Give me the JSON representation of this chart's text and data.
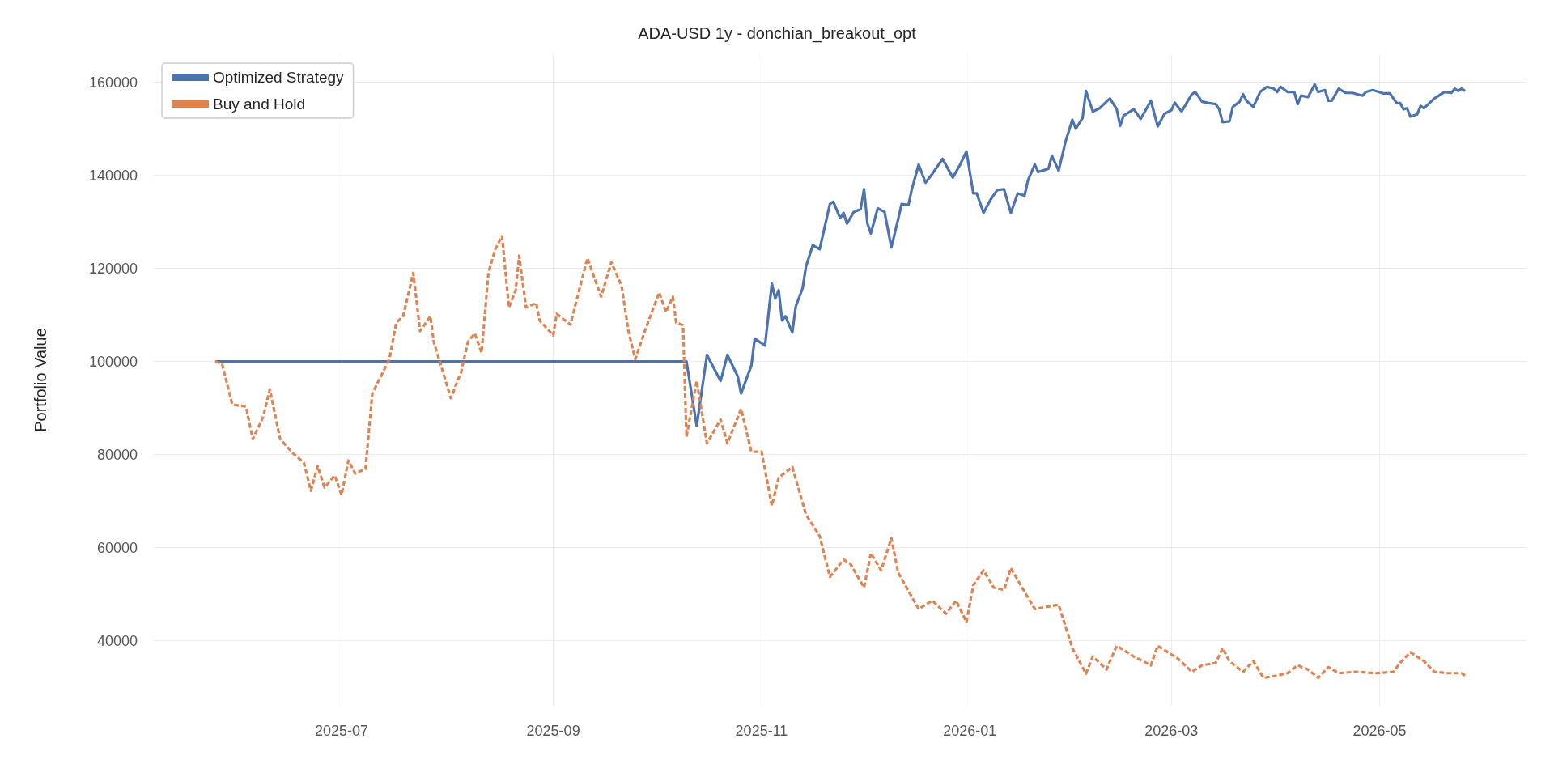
{
  "chart_data": {
    "type": "line",
    "title": "ADA-USD 1y - donchian_breakout_opt",
    "ylabel": "Portfolio Value",
    "xlim": [
      "2025-05-07",
      "2026-06-13"
    ],
    "xticks": [
      "2025-07",
      "2025-09",
      "2025-11",
      "2026-01",
      "2026-03",
      "2026-05"
    ],
    "ylim": [
      26000,
      166000
    ],
    "yticks": [
      40000,
      60000,
      80000,
      100000,
      120000,
      140000,
      160000
    ],
    "grid": true,
    "legend": "top left",
    "marker": "none",
    "series": [
      {
        "name": "Optimized Strategy",
        "color": "#4c72b0",
        "line_style": "solid",
        "x": [
          "2025-05-25",
          "2025-10-09",
          "2025-10-10",
          "2025-10-13",
          "2025-10-16",
          "2025-10-20",
          "2025-10-22",
          "2025-10-25",
          "2025-10-26",
          "2025-10-29",
          "2025-10-30",
          "2025-11-02",
          "2025-11-04",
          "2025-11-05",
          "2025-11-06",
          "2025-11-07",
          "2025-11-08",
          "2025-11-10",
          "2025-11-11",
          "2025-11-13",
          "2025-11-14",
          "2025-11-16",
          "2025-11-18",
          "2025-11-21",
          "2025-11-22",
          "2025-11-24",
          "2025-11-25",
          "2025-11-26",
          "2025-11-28",
          "2025-11-30",
          "2025-12-01",
          "2025-12-02",
          "2025-12-03",
          "2025-12-05",
          "2025-12-07",
          "2025-12-09",
          "2025-12-11",
          "2025-12-12",
          "2025-12-14",
          "2025-12-15",
          "2025-12-17",
          "2025-12-19",
          "2025-12-21",
          "2025-12-24",
          "2025-12-27",
          "2025-12-29",
          "2025-12-31",
          "2026-01-02",
          "2026-01-03",
          "2026-01-05",
          "2026-01-07",
          "2026-01-09",
          "2026-01-11",
          "2026-01-13",
          "2026-01-15",
          "2026-01-17",
          "2026-01-18",
          "2026-01-20",
          "2026-01-21",
          "2026-01-24",
          "2026-01-25",
          "2026-01-27",
          "2026-01-29",
          "2026-01-31",
          "2026-02-01",
          "2026-02-03",
          "2026-02-04",
          "2026-02-06",
          "2026-02-08",
          "2026-02-11",
          "2026-02-13",
          "2026-02-14",
          "2026-02-15",
          "2026-02-18",
          "2026-02-20",
          "2026-02-23",
          "2026-02-25",
          "2026-02-27",
          "2026-03-01",
          "2026-03-02",
          "2026-03-04",
          "2026-03-06",
          "2026-03-07",
          "2026-03-08",
          "2026-03-10",
          "2026-03-12",
          "2026-03-14",
          "2026-03-15",
          "2026-03-16",
          "2026-03-18",
          "2026-03-19",
          "2026-03-21",
          "2026-03-22",
          "2026-03-23",
          "2026-03-25",
          "2026-03-27",
          "2026-03-29",
          "2026-03-31",
          "2026-04-01",
          "2026-04-02",
          "2026-04-04",
          "2026-04-06",
          "2026-04-07",
          "2026-04-08",
          "2026-04-10",
          "2026-04-12",
          "2026-04-13",
          "2026-04-15",
          "2026-04-16",
          "2026-04-17",
          "2026-04-19",
          "2026-04-21",
          "2026-04-23",
          "2026-04-26",
          "2026-04-27",
          "2026-04-29",
          "2026-05-02",
          "2026-05-04",
          "2026-05-06",
          "2026-05-07",
          "2026-05-08",
          "2026-05-09",
          "2026-05-10",
          "2026-05-12",
          "2026-05-13",
          "2026-05-14",
          "2026-05-17",
          "2026-05-19",
          "2026-05-20",
          "2026-05-22",
          "2026-05-23",
          "2026-05-24",
          "2026-05-25",
          "2026-05-26"
        ],
        "values": [
          100000,
          100000,
          100000,
          86100,
          101400,
          95800,
          101400,
          96800,
          93100,
          99100,
          104900,
          103400,
          116700,
          113500,
          115300,
          108800,
          109700,
          106200,
          111800,
          115700,
          120400,
          125000,
          124100,
          133800,
          134300,
          130800,
          131900,
          129600,
          132100,
          132700,
          137000,
          129600,
          127500,
          132900,
          132100,
          124500,
          130600,
          133800,
          133600,
          137000,
          142300,
          138400,
          140300,
          143500,
          139500,
          142100,
          145100,
          136100,
          136100,
          131900,
          134700,
          136800,
          137000,
          131900,
          136100,
          135600,
          138900,
          142300,
          140700,
          141400,
          144200,
          141000,
          147200,
          151900,
          150000,
          152300,
          158100,
          153700,
          154400,
          156500,
          154200,
          150600,
          152800,
          154200,
          152100,
          156000,
          150500,
          153200,
          154000,
          155600,
          153700,
          156200,
          157400,
          157900,
          155800,
          155500,
          155300,
          154200,
          151400,
          151600,
          154700,
          155800,
          157400,
          156000,
          154700,
          157900,
          159000,
          158600,
          157900,
          159000,
          157900,
          157900,
          155300,
          157100,
          156800,
          159500,
          157900,
          158300,
          156000,
          156000,
          158600,
          157700,
          157700,
          157100,
          157900,
          158300,
          157600,
          157600,
          155500,
          155500,
          154200,
          154400,
          152600,
          153100,
          154900,
          154400,
          156500,
          157400,
          157900,
          157700,
          158600,
          158100,
          158600,
          158100
        ]
      },
      {
        "name": "Buy and Hold",
        "color": "#dd8452",
        "line_style": "dashed",
        "x": [
          "2025-05-25",
          "2025-05-27",
          "2025-05-30",
          "2025-06-03",
          "2025-06-05",
          "2025-06-08",
          "2025-06-10",
          "2025-06-13",
          "2025-06-17",
          "2025-06-20",
          "2025-06-22",
          "2025-06-24",
          "2025-06-26",
          "2025-06-29",
          "2025-07-01",
          "2025-07-03",
          "2025-07-05",
          "2025-07-08",
          "2025-07-10",
          "2025-07-15",
          "2025-07-17",
          "2025-07-19",
          "2025-07-22",
          "2025-07-24",
          "2025-07-27",
          "2025-07-28",
          "2025-08-02",
          "2025-08-05",
          "2025-08-07",
          "2025-08-09",
          "2025-08-11",
          "2025-08-13",
          "2025-08-15",
          "2025-08-17",
          "2025-08-19",
          "2025-08-21",
          "2025-08-22",
          "2025-08-24",
          "2025-08-27",
          "2025-08-28",
          "2025-09-01",
          "2025-09-02",
          "2025-09-06",
          "2025-09-11",
          "2025-09-15",
          "2025-09-18",
          "2025-09-21",
          "2025-09-23",
          "2025-09-25",
          "2025-09-28",
          "2025-10-02",
          "2025-10-04",
          "2025-10-06",
          "2025-10-07",
          "2025-10-09",
          "2025-10-10",
          "2025-10-13",
          "2025-10-16",
          "2025-10-20",
          "2025-10-22",
          "2025-10-26",
          "2025-10-29",
          "2025-11-01",
          "2025-11-04",
          "2025-11-06",
          "2025-11-10",
          "2025-11-14",
          "2025-11-18",
          "2025-11-21",
          "2025-11-25",
          "2025-11-27",
          "2025-12-01",
          "2025-12-03",
          "2025-12-06",
          "2025-12-09",
          "2025-12-11",
          "2025-12-17",
          "2025-12-21",
          "2025-12-25",
          "2025-12-28",
          "2025-12-31",
          "2026-01-02",
          "2026-01-05",
          "2026-01-08",
          "2026-01-11",
          "2026-01-13",
          "2026-01-17",
          "2026-01-20",
          "2026-01-23",
          "2026-01-27",
          "2026-01-31",
          "2026-02-04",
          "2026-02-06",
          "2026-02-10",
          "2026-02-13",
          "2026-02-18",
          "2026-02-23",
          "2026-02-25",
          "2026-03-03",
          "2026-03-07",
          "2026-03-10",
          "2026-03-14",
          "2026-03-16",
          "2026-03-18",
          "2026-03-22",
          "2026-03-25",
          "2026-03-28",
          "2026-04-01",
          "2026-04-04",
          "2026-04-07",
          "2026-04-10",
          "2026-04-13",
          "2026-04-16",
          "2026-04-19",
          "2026-04-24",
          "2026-04-30",
          "2026-05-05",
          "2026-05-07",
          "2026-05-10",
          "2026-05-14",
          "2026-05-17",
          "2026-05-21",
          "2026-05-25",
          "2026-05-26"
        ],
        "values": [
          100000,
          99500,
          90700,
          90300,
          83300,
          88000,
          94000,
          83300,
          80100,
          78200,
          72200,
          77500,
          72900,
          75500,
          71300,
          78700,
          75900,
          76900,
          93100,
          100500,
          108300,
          109700,
          119000,
          106500,
          109700,
          104200,
          92100,
          97700,
          104200,
          106000,
          101900,
          119000,
          124100,
          126900,
          111600,
          115300,
          122700,
          111600,
          112500,
          108800,
          105600,
          110200,
          107900,
          122200,
          113900,
          121300,
          116200,
          106500,
          100500,
          106900,
          114800,
          110600,
          113900,
          108300,
          107800,
          83800,
          95800,
          82400,
          87500,
          82400,
          89800,
          80600,
          80600,
          69000,
          75000,
          77300,
          67100,
          62500,
          53700,
          57400,
          56500,
          51400,
          58800,
          55100,
          62000,
          54600,
          46800,
          48600,
          45800,
          48600,
          44000,
          51900,
          55100,
          51400,
          50900,
          55600,
          50500,
          46800,
          47200,
          47700,
          38400,
          32900,
          36600,
          33800,
          38900,
          36600,
          34700,
          38900,
          36100,
          33300,
          34700,
          35200,
          38400,
          35600,
          33300,
          35600,
          32000,
          32500,
          33000,
          34700,
          33800,
          32000,
          34300,
          33000,
          33300,
          33000,
          33300,
          35200,
          37500,
          35600,
          33300,
          33000,
          33000,
          32500
        ]
      }
    ]
  }
}
